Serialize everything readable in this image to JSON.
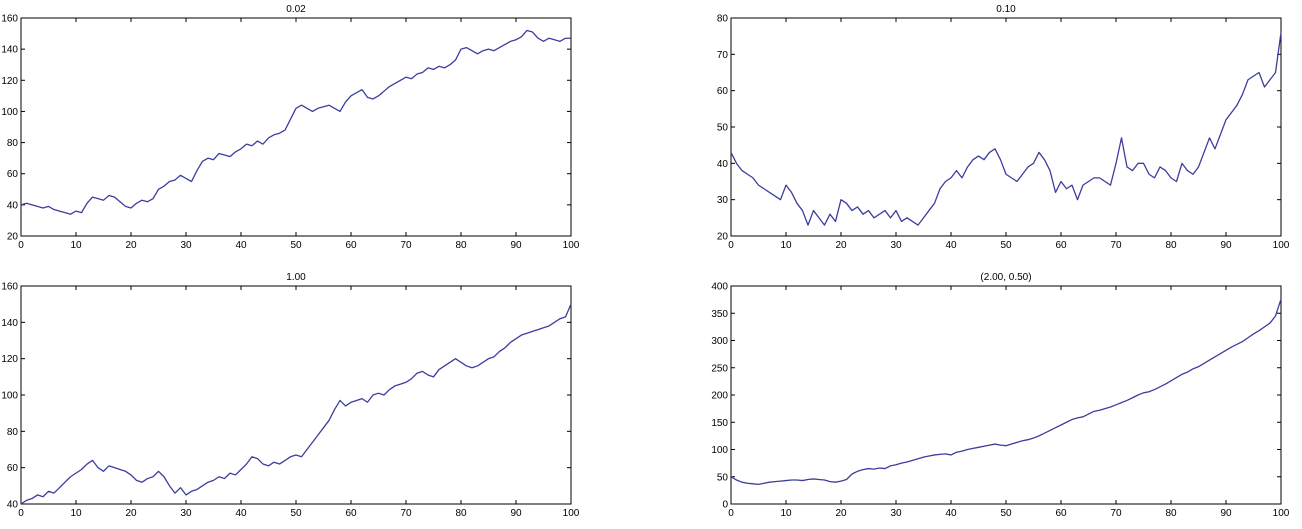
{
  "colors": {
    "line": "#3d3d9e"
  },
  "chart_data": [
    {
      "type": "line",
      "title": "0.02",
      "xlim": [
        0,
        100
      ],
      "ylim": [
        20,
        160
      ],
      "xticks": [
        0,
        10,
        20,
        30,
        40,
        50,
        60,
        70,
        80,
        90,
        100
      ],
      "yticks": [
        20,
        40,
        60,
        80,
        100,
        120,
        140,
        160
      ],
      "grid": false,
      "series": [
        {
          "x": [
            0,
            1,
            2,
            3,
            4,
            5,
            6,
            7,
            8,
            9,
            10,
            11,
            12,
            13,
            14,
            15,
            16,
            17,
            18,
            19,
            20,
            21,
            22,
            23,
            24,
            25,
            26,
            27,
            28,
            29,
            30,
            31,
            32,
            33,
            34,
            35,
            36,
            37,
            38,
            39,
            40,
            41,
            42,
            43,
            44,
            45,
            46,
            47,
            48,
            49,
            50,
            51,
            52,
            53,
            54,
            55,
            56,
            57,
            58,
            59,
            60,
            61,
            62,
            63,
            64,
            65,
            66,
            67,
            68,
            69,
            70,
            71,
            72,
            73,
            74,
            75,
            76,
            77,
            78,
            79,
            80,
            81,
            82,
            83,
            84,
            85,
            86,
            87,
            88,
            89,
            90,
            91,
            92,
            93,
            94,
            95,
            96,
            97,
            98,
            99,
            100
          ],
          "y": [
            40,
            41,
            40,
            39,
            38,
            39,
            37,
            36,
            35,
            34,
            36,
            35,
            41,
            45,
            44,
            43,
            46,
            45,
            42,
            39,
            38,
            41,
            43,
            42,
            44,
            50,
            52,
            55,
            56,
            59,
            57,
            55,
            62,
            68,
            70,
            69,
            73,
            72,
            71,
            74,
            76,
            79,
            78,
            81,
            79,
            83,
            85,
            86,
            88,
            95,
            102,
            104,
            102,
            100,
            102,
            103,
            104,
            102,
            100,
            106,
            110,
            112,
            114,
            109,
            108,
            110,
            113,
            116,
            118,
            120,
            122,
            121,
            124,
            125,
            128,
            127,
            129,
            128,
            130,
            133,
            140,
            141,
            139,
            137,
            139,
            140,
            139,
            141,
            143,
            145,
            146,
            148,
            152,
            151,
            147,
            145,
            147,
            146,
            145,
            147,
            147
          ]
        }
      ]
    },
    {
      "type": "line",
      "title": "0.10",
      "xlim": [
        0,
        100
      ],
      "ylim": [
        20,
        80
      ],
      "xticks": [
        0,
        10,
        20,
        30,
        40,
        50,
        60,
        70,
        80,
        90,
        100
      ],
      "yticks": [
        20,
        30,
        40,
        50,
        60,
        70,
        80
      ],
      "grid": false,
      "series": [
        {
          "x": [
            0,
            1,
            2,
            3,
            4,
            5,
            6,
            7,
            8,
            9,
            10,
            11,
            12,
            13,
            14,
            15,
            16,
            17,
            18,
            19,
            20,
            21,
            22,
            23,
            24,
            25,
            26,
            27,
            28,
            29,
            30,
            31,
            32,
            33,
            34,
            35,
            36,
            37,
            38,
            39,
            40,
            41,
            42,
            43,
            44,
            45,
            46,
            47,
            48,
            49,
            50,
            51,
            52,
            53,
            54,
            55,
            56,
            57,
            58,
            59,
            60,
            61,
            62,
            63,
            64,
            65,
            66,
            67,
            68,
            69,
            70,
            71,
            72,
            73,
            74,
            75,
            76,
            77,
            78,
            79,
            80,
            81,
            82,
            83,
            84,
            85,
            86,
            87,
            88,
            89,
            90,
            91,
            92,
            93,
            94,
            95,
            96,
            97,
            98,
            99,
            100
          ],
          "y": [
            43,
            40,
            38,
            37,
            36,
            34,
            33,
            32,
            31,
            30,
            34,
            32,
            29,
            27,
            23,
            27,
            25,
            23,
            26,
            24,
            30,
            29,
            27,
            28,
            26,
            27,
            25,
            26,
            27,
            25,
            27,
            24,
            25,
            24,
            23,
            25,
            27,
            29,
            33,
            35,
            36,
            38,
            36,
            39,
            41,
            42,
            41,
            43,
            44,
            41,
            37,
            36,
            35,
            37,
            39,
            40,
            43,
            41,
            38,
            32,
            35,
            33,
            34,
            30,
            34,
            35,
            36,
            36,
            35,
            34,
            40,
            47,
            39,
            38,
            40,
            40,
            37,
            36,
            39,
            38,
            36,
            35,
            40,
            38,
            37,
            39,
            43,
            47,
            44,
            48,
            52,
            54,
            56,
            59,
            63,
            64,
            65,
            61,
            63,
            65,
            76
          ]
        }
      ]
    },
    {
      "type": "line",
      "title": "1.00",
      "xlim": [
        0,
        100
      ],
      "ylim": [
        40,
        160
      ],
      "xticks": [
        0,
        10,
        20,
        30,
        40,
        50,
        60,
        70,
        80,
        90,
        100
      ],
      "yticks": [
        40,
        60,
        80,
        100,
        120,
        140,
        160
      ],
      "grid": false,
      "series": [
        {
          "x": [
            0,
            1,
            2,
            3,
            4,
            5,
            6,
            7,
            8,
            9,
            10,
            11,
            12,
            13,
            14,
            15,
            16,
            17,
            18,
            19,
            20,
            21,
            22,
            23,
            24,
            25,
            26,
            27,
            28,
            29,
            30,
            31,
            32,
            33,
            34,
            35,
            36,
            37,
            38,
            39,
            40,
            41,
            42,
            43,
            44,
            45,
            46,
            47,
            48,
            49,
            50,
            51,
            52,
            53,
            54,
            55,
            56,
            57,
            58,
            59,
            60,
            61,
            62,
            63,
            64,
            65,
            66,
            67,
            68,
            69,
            70,
            71,
            72,
            73,
            74,
            75,
            76,
            77,
            78,
            79,
            80,
            81,
            82,
            83,
            84,
            85,
            86,
            87,
            88,
            89,
            90,
            91,
            92,
            93,
            94,
            95,
            96,
            97,
            98,
            99,
            100
          ],
          "y": [
            40,
            42,
            43,
            45,
            44,
            47,
            46,
            49,
            52,
            55,
            57,
            59,
            62,
            64,
            60,
            58,
            61,
            60,
            59,
            58,
            56,
            53,
            52,
            54,
            55,
            58,
            55,
            50,
            46,
            49,
            45,
            47,
            48,
            50,
            52,
            53,
            55,
            54,
            57,
            56,
            59,
            62,
            66,
            65,
            62,
            61,
            63,
            62,
            64,
            66,
            67,
            66,
            70,
            74,
            78,
            82,
            86,
            92,
            97,
            94,
            96,
            97,
            98,
            96,
            100,
            101,
            100,
            103,
            105,
            106,
            107,
            109,
            112,
            113,
            111,
            110,
            114,
            116,
            118,
            120,
            118,
            116,
            115,
            116,
            118,
            120,
            121,
            124,
            126,
            129,
            131,
            133,
            134,
            135,
            136,
            137,
            138,
            140,
            142,
            143,
            150
          ]
        }
      ]
    },
    {
      "type": "line",
      "title": "(2.00, 0.50)",
      "xlim": [
        0,
        100
      ],
      "ylim": [
        0,
        400
      ],
      "xticks": [
        0,
        10,
        20,
        30,
        40,
        50,
        60,
        70,
        80,
        90,
        100
      ],
      "yticks": [
        0,
        50,
        100,
        150,
        200,
        250,
        300,
        350,
        400
      ],
      "grid": false,
      "series": [
        {
          "x": [
            0,
            1,
            2,
            3,
            4,
            5,
            6,
            7,
            8,
            9,
            10,
            11,
            12,
            13,
            14,
            15,
            16,
            17,
            18,
            19,
            20,
            21,
            22,
            23,
            24,
            25,
            26,
            27,
            28,
            29,
            30,
            31,
            32,
            33,
            34,
            35,
            36,
            37,
            38,
            39,
            40,
            41,
            42,
            43,
            44,
            45,
            46,
            47,
            48,
            49,
            50,
            51,
            52,
            53,
            54,
            55,
            56,
            57,
            58,
            59,
            60,
            61,
            62,
            63,
            64,
            65,
            66,
            67,
            68,
            69,
            70,
            71,
            72,
            73,
            74,
            75,
            76,
            77,
            78,
            79,
            80,
            81,
            82,
            83,
            84,
            85,
            86,
            87,
            88,
            89,
            90,
            91,
            92,
            93,
            94,
            95,
            96,
            97,
            98,
            99,
            100
          ],
          "y": [
            50,
            44,
            40,
            38,
            37,
            36,
            38,
            40,
            41,
            42,
            43,
            44,
            44,
            43,
            45,
            46,
            45,
            44,
            41,
            40,
            42,
            45,
            55,
            60,
            63,
            65,
            64,
            66,
            65,
            70,
            72,
            75,
            77,
            80,
            83,
            86,
            88,
            90,
            91,
            92,
            90,
            95,
            97,
            100,
            102,
            104,
            106,
            108,
            110,
            108,
            107,
            110,
            113,
            116,
            118,
            121,
            125,
            130,
            135,
            140,
            145,
            150,
            155,
            158,
            160,
            165,
            170,
            172,
            175,
            178,
            182,
            186,
            190,
            195,
            200,
            204,
            206,
            210,
            215,
            220,
            226,
            232,
            238,
            242,
            248,
            252,
            258,
            264,
            270,
            276,
            282,
            288,
            293,
            298,
            305,
            312,
            318,
            325,
            332,
            345,
            376
          ]
        }
      ]
    }
  ]
}
